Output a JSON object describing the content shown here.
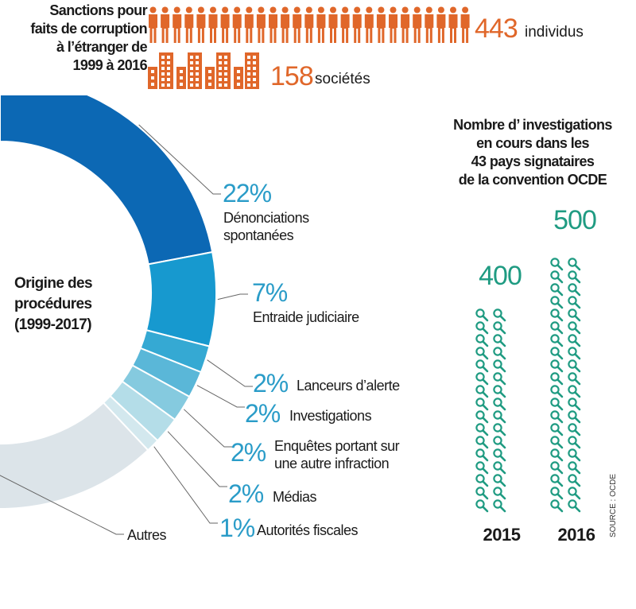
{
  "sanctions": {
    "title_lines": [
      "Sanctions pour",
      "faits de corruption",
      "à l’étranger de",
      "1999 à 2016"
    ],
    "individuals_value": "443",
    "individuals_label": "individus",
    "companies_value": "158",
    "companies_label": "sociétés",
    "color": "#e0672a",
    "people_icon": "person-icon",
    "company_icon": "building-icon"
  },
  "donut_title_lines": [
    "Origine des",
    "procédures",
    "(1999-2017)"
  ],
  "chart_data": [
    {
      "type": "pie",
      "title": "Origine des procédures (1999-2017)",
      "slices": [
        {
          "label": "Dénonciations spontanées",
          "value": 22,
          "pct_text": "22%",
          "color": "#0c68b4"
        },
        {
          "label": "Entraide judiciaire",
          "value": 7,
          "pct_text": "7%",
          "color": "#1799cf"
        },
        {
          "label": "Lanceurs d’alerte",
          "value": 2,
          "pct_text": "2%",
          "color": "#35a9d3"
        },
        {
          "label": "Investigations",
          "value": 2,
          "pct_text": "2%",
          "color": "#5ab7d8"
        },
        {
          "label": "Enquêtes portant sur une autre infraction",
          "value": 2,
          "pct_text": "2%",
          "color": "#85cadf"
        },
        {
          "label": "Médias",
          "value": 2,
          "pct_text": "2%",
          "color": "#b4dde8"
        },
        {
          "label": "Autorités fiscales",
          "value": 1,
          "pct_text": "1%",
          "color": "#d3e8ee"
        },
        {
          "label": "Autres",
          "value": 62,
          "pct_text": "",
          "color": "#dce4e9"
        }
      ]
    },
    {
      "type": "bar",
      "title": "Nombre d’investigations en cours dans les 43 pays signataires de la convention OCDE",
      "categories": [
        "2015",
        "2016"
      ],
      "values": [
        400,
        500
      ],
      "value_labels": [
        "400",
        "500"
      ],
      "color": "#1f9b82",
      "icon": "magnifier-icon"
    }
  ],
  "labels": {
    "denonciations": [
      "Dénonciations",
      "spontanées"
    ],
    "entraide": "Entraide judiciaire",
    "lanceurs": "Lanceurs d’alerte",
    "investigations": "Investigations",
    "enquetes": [
      "Enquêtes portant sur",
      "une autre infraction"
    ],
    "medias": "Médias",
    "fiscales": "Autorités fiscales",
    "autres": "Autres"
  },
  "inv_title_lines": [
    "Nombre d’ investigations",
    "en cours dans les",
    "43 pays signataires",
    "de la convention OCDE"
  ],
  "source": "SOURCE : OCDE"
}
